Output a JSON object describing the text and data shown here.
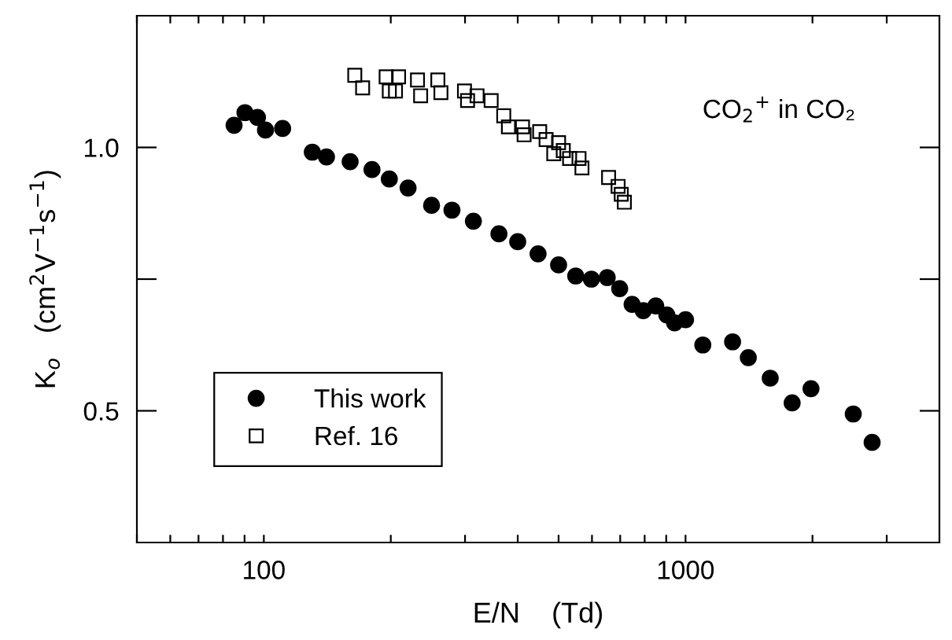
{
  "chart_data": {
    "type": "scatter",
    "xlabel": "E/N    (Td)",
    "ylabel": "K$_{o}$   (cm$^{2}$V$^{−1}$s$^{−1}$)",
    "log": "x",
    "xlim": [
      50,
      4000
    ],
    "ylim": [
      0.25,
      1.25
    ],
    "xticks": [
      {
        "value": 50,
        "label": null
      },
      {
        "value": 60,
        "label": null
      },
      {
        "value": 70,
        "label": null
      },
      {
        "value": 80,
        "label": null
      },
      {
        "value": 90,
        "label": null
      },
      100,
      {
        "value": 200,
        "label": null
      },
      {
        "value": 300,
        "label": null
      },
      {
        "value": 400,
        "label": null
      },
      {
        "value": 500,
        "label": null
      },
      {
        "value": 600,
        "label": null
      },
      {
        "value": 700,
        "label": null
      },
      {
        "value": 800,
        "label": null
      },
      {
        "value": 900,
        "label": null
      },
      1000,
      {
        "value": 2000,
        "label": null
      },
      {
        "value": 3000,
        "label": null
      }
    ],
    "yticks": [
      0.5,
      {
        "value": 0.75,
        "label": null
      },
      {
        "value": 1.0,
        "label": "1.0"
      }
    ],
    "grid": false,
    "legend": "bottom left",
    "annotations": [
      "CO$_{2}$$^{+}$ in CO₂"
    ],
    "series": [
      {
        "name": "This work",
        "color": "#000000",
        "marker": "circle",
        "x": [
          85.0,
          90.2,
          96.6,
          100.9,
          110.8,
          130.3,
          140.8,
          160.2,
          180.5,
          198.4,
          219.8,
          249.9,
          279.3,
          314,
          361,
          400,
          447,
          500,
          549,
          598,
          652,
          698,
          747,
          794,
          850,
          903,
          942,
          1000,
          1099,
          1293,
          1409,
          1588,
          1790,
          1984,
          2499,
          2770
        ],
        "values": [
          1.042,
          1.066,
          1.057,
          1.033,
          1.036,
          0.991,
          0.982,
          0.973,
          0.958,
          0.94,
          0.923,
          0.89,
          0.881,
          0.86,
          0.836,
          0.821,
          0.798,
          0.777,
          0.756,
          0.75,
          0.753,
          0.732,
          0.702,
          0.69,
          0.699,
          0.682,
          0.667,
          0.673,
          0.625,
          0.631,
          0.601,
          0.562,
          0.515,
          0.542,
          0.494,
          0.44
        ]
      },
      {
        "name": "Ref. 16",
        "color": "#000000",
        "marker": "square",
        "x": [
          164.3,
          171.5,
          195.0,
          198.4,
          208.7,
          205.2,
          231.4,
          235.4,
          258.6,
          263.0,
          299.1,
          304.2,
          320.3,
          346,
          370.6,
          380.2,
          410.6,
          414.2,
          451,
          467,
          500,
          487,
          513,
          531,
          559,
          568,
          657,
          692,
          704,
          716
        ],
        "values": [
          1.137,
          1.113,
          1.134,
          1.107,
          1.134,
          1.107,
          1.128,
          1.098,
          1.128,
          1.104,
          1.107,
          1.089,
          1.098,
          1.089,
          1.06,
          1.039,
          1.039,
          1.024,
          1.03,
          1.015,
          1.009,
          0.988,
          0.994,
          0.979,
          0.979,
          0.961,
          0.943,
          0.926,
          0.911,
          0.896
        ]
      }
    ]
  }
}
